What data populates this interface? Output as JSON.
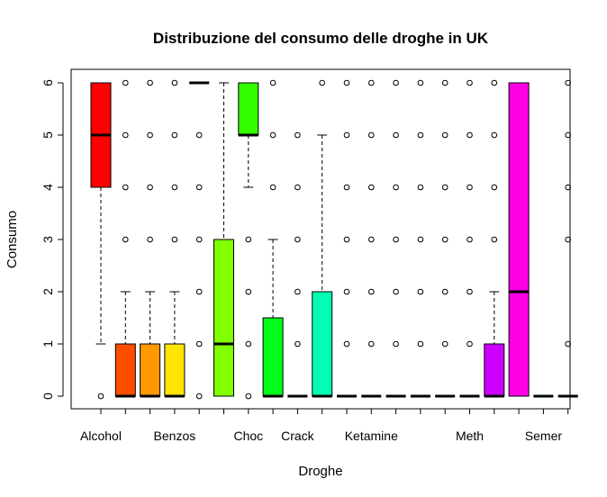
{
  "chart_data": {
    "type": "boxplot",
    "title": "Distribuzione del consumo delle droghe in UK",
    "xlabel": "Droghe",
    "ylabel": "Consumo",
    "ylim": [
      0,
      6
    ],
    "yticks": [
      0,
      1,
      2,
      3,
      4,
      5,
      6
    ],
    "grid": false,
    "legend": "none",
    "x_tick_labels": [
      "Alcohol",
      "",
      "",
      "Benzos",
      "",
      "",
      "Choc",
      "",
      "Crack",
      "",
      "",
      "Ketamine",
      "",
      "",
      "",
      "Meth",
      "",
      "",
      "Semer",
      ""
    ],
    "boxes": [
      {
        "color": "#FF0000",
        "q1": 4,
        "median": 5,
        "q3": 6,
        "whisker_low": 1,
        "whisker_high": 6,
        "outliers": [
          0
        ]
      },
      {
        "color": "#FF4D00",
        "q1": 0,
        "median": 0,
        "q3": 1,
        "whisker_low": 0,
        "whisker_high": 2,
        "outliers": [
          3,
          4,
          5,
          6
        ]
      },
      {
        "color": "#FF9900",
        "q1": 0,
        "median": 0,
        "q3": 1,
        "whisker_low": 0,
        "whisker_high": 2,
        "outliers": [
          3,
          4,
          5,
          6
        ]
      },
      {
        "color": "#FFE500",
        "q1": 0,
        "median": 0,
        "q3": 1,
        "whisker_low": 0,
        "whisker_high": 2,
        "outliers": [
          3,
          4,
          5,
          6
        ]
      },
      {
        "color": "#CCFF00",
        "q1": 6,
        "median": 6,
        "q3": 6,
        "whisker_low": 6,
        "whisker_high": 6,
        "outliers": [
          0,
          1,
          2,
          3,
          4,
          5
        ]
      },
      {
        "color": "#80FF00",
        "q1": 0,
        "median": 1,
        "q3": 3,
        "whisker_low": 0,
        "whisker_high": 6,
        "outliers": []
      },
      {
        "color": "#33FF00",
        "q1": 5,
        "median": 5,
        "q3": 6,
        "whisker_low": 4,
        "whisker_high": 6,
        "outliers": [
          0,
          1,
          2,
          3
        ]
      },
      {
        "color": "#00FF19",
        "q1": 0,
        "median": 0,
        "q3": 1.5,
        "whisker_low": 0,
        "whisker_high": 3,
        "outliers": [
          4,
          5,
          6
        ]
      },
      {
        "color": "#00FF66",
        "q1": 0,
        "median": 0,
        "q3": 0,
        "whisker_low": 0,
        "whisker_high": 0,
        "outliers": [
          1,
          2,
          3,
          4,
          5
        ]
      },
      {
        "color": "#00FFB2",
        "q1": 0,
        "median": 0,
        "q3": 2,
        "whisker_low": 0,
        "whisker_high": 5,
        "outliers": [
          6
        ]
      },
      {
        "color": "#00FFFF",
        "q1": 0,
        "median": 0,
        "q3": 0,
        "whisker_low": 0,
        "whisker_high": 0,
        "outliers": [
          1,
          2,
          3,
          4,
          5,
          6
        ]
      },
      {
        "color": "#00B3FF",
        "q1": 0,
        "median": 0,
        "q3": 0,
        "whisker_low": 0,
        "whisker_high": 0,
        "outliers": [
          1,
          2,
          3,
          4,
          5,
          6
        ]
      },
      {
        "color": "#0066FF",
        "q1": 0,
        "median": 0,
        "q3": 0,
        "whisker_low": 0,
        "whisker_high": 0,
        "outliers": [
          1,
          2,
          3,
          4,
          5,
          6
        ]
      },
      {
        "color": "#0019FF",
        "q1": 0,
        "median": 0,
        "q3": 0,
        "whisker_low": 0,
        "whisker_high": 0,
        "outliers": [
          1,
          2,
          3,
          4,
          5,
          6
        ]
      },
      {
        "color": "#3300FF",
        "q1": 0,
        "median": 0,
        "q3": 0,
        "whisker_low": 0,
        "whisker_high": 0,
        "outliers": [
          1,
          2,
          3,
          4,
          5,
          6
        ]
      },
      {
        "color": "#8000FF",
        "q1": 0,
        "median": 0,
        "q3": 0,
        "whisker_low": 0,
        "whisker_high": 0,
        "outliers": [
          1,
          2,
          3,
          4,
          5,
          6
        ]
      },
      {
        "color": "#CC00FF",
        "q1": 0,
        "median": 0,
        "q3": 1,
        "whisker_low": 0,
        "whisker_high": 2,
        "outliers": [
          3,
          4,
          5,
          6
        ]
      },
      {
        "color": "#FF00E6",
        "q1": 0,
        "median": 2,
        "q3": 6,
        "whisker_low": 0,
        "whisker_high": 6,
        "outliers": []
      },
      {
        "color": "#FF0099",
        "q1": 0,
        "median": 0,
        "q3": 0,
        "whisker_low": 0,
        "whisker_high": 0,
        "outliers": []
      },
      {
        "color": "#FF004D",
        "q1": 0,
        "median": 0,
        "q3": 0,
        "whisker_low": 0,
        "whisker_high": 0,
        "outliers": [
          1,
          3,
          4,
          5,
          6
        ]
      }
    ]
  }
}
